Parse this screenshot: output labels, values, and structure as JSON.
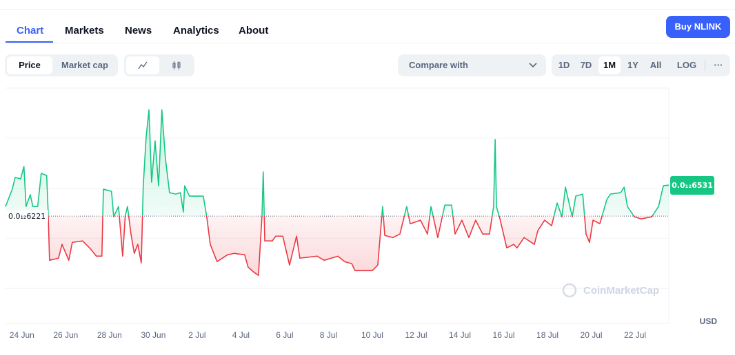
{
  "tabs": [
    "Chart",
    "Markets",
    "News",
    "Analytics",
    "About"
  ],
  "buy_button": "Buy NLINK",
  "toggle": [
    "Price",
    "Market cap"
  ],
  "compare": "Compare with",
  "ranges": [
    "1D",
    "7D",
    "1M",
    "1Y",
    "All",
    "LOG"
  ],
  "more": "···",
  "chart_data": {
    "type": "line",
    "up_color": "#16c784",
    "down_color": "#ea3943",
    "watermark": "CoinMarketCap",
    "currency": "USD",
    "baseline": {
      "value": 6.221e-13,
      "label": "0.0₁₂6221"
    },
    "current": {
      "value": 6.531e-13,
      "label": "0.0₁₂6531"
    },
    "grid": true,
    "xlim": [
      -0.75,
      29.54
    ],
    "ylim": [
      5.15e-13,
      7.5e-13
    ],
    "yticks": [
      5.5e-13,
      6e-13,
      6.5e-13,
      7e-13,
      7.5e-13
    ],
    "xticks": [
      {
        "value": 0,
        "label": "24 Jun"
      },
      {
        "value": 2,
        "label": "26 Jun"
      },
      {
        "value": 4,
        "label": "28 Jun"
      },
      {
        "value": 6,
        "label": "30 Jun"
      },
      {
        "value": 8,
        "label": "2 Jul"
      },
      {
        "value": 10,
        "label": "4 Jul"
      },
      {
        "value": 12,
        "label": "6 Jul"
      },
      {
        "value": 14,
        "label": "8 Jul"
      },
      {
        "value": 16,
        "label": "10 Jul"
      },
      {
        "value": 18,
        "label": "12 Jul"
      },
      {
        "value": 20,
        "label": "14 Jul"
      },
      {
        "value": 22,
        "label": "16 Jul"
      },
      {
        "value": 24,
        "label": "18 Jul"
      },
      {
        "value": 26,
        "label": "20 Jul"
      },
      {
        "value": 28,
        "label": "22 Jul"
      }
    ],
    "x": [
      -0.75,
      -0.44,
      -0.31,
      -0.06,
      0.09,
      0.19,
      0.38,
      0.5,
      0.72,
      0.88,
      1.13,
      1.2,
      1.26,
      1.67,
      1.83,
      2.14,
      2.3,
      2.77,
      3.09,
      3.4,
      3.65,
      3.72,
      4.09,
      4.19,
      4.41,
      4.6,
      4.72,
      4.82,
      4.98,
      5.13,
      5.29,
      5.45,
      5.54,
      5.67,
      5.8,
      5.92,
      6.08,
      6.24,
      6.39,
      6.55,
      6.74,
      7.02,
      7.24,
      7.37,
      7.43,
      7.65,
      8.28,
      8.44,
      8.6,
      8.91,
      9.39,
      9.7,
      10.17,
      10.33,
      10.58,
      10.8,
      10.96,
      11.02,
      11.09,
      11.43,
      11.59,
      11.91,
      12.22,
      12.54,
      12.69,
      13.48,
      13.8,
      14.43,
      14.74,
      15.06,
      15.21,
      16.0,
      16.25,
      16.47,
      16.57,
      16.94,
      17.26,
      17.57,
      17.73,
      18.2,
      18.52,
      18.68,
      18.99,
      19.31,
      19.62,
      19.78,
      20.09,
      20.41,
      20.72,
      21.04,
      21.35,
      21.54,
      21.61,
      21.67,
      21.83,
      22.14,
      22.46,
      22.61,
      22.93,
      23.4,
      23.56,
      23.87,
      24.19,
      24.44,
      24.66,
      24.82,
      25.13,
      25.29,
      25.61,
      25.76,
      25.92,
      26.08,
      26.39,
      26.71,
      26.87,
      27.34,
      27.5,
      27.65,
      27.97,
      28.28,
      28.76,
      29.07,
      29.29,
      29.54
    ],
    "values": [
      6.317e-13,
      6.49e-13,
      6.607e-13,
      6.593e-13,
      6.717e-13,
      6.317e-13,
      6.435e-13,
      6.317e-13,
      6.317e-13,
      6.648e-13,
      6.627e-13,
      6.249e-13,
      5.78e-13,
      5.801e-13,
      5.939e-13,
      5.78e-13,
      5.959e-13,
      5.973e-13,
      5.904e-13,
      5.821e-13,
      5.821e-13,
      6.49e-13,
      6.469e-13,
      6.214e-13,
      6.317e-13,
      5.821e-13,
      6.228e-13,
      6.317e-13,
      6.042e-13,
      5.849e-13,
      5.939e-13,
      5.753e-13,
      6.524e-13,
      7.006e-13,
      7.282e-13,
      6.559e-13,
      6.972e-13,
      6.524e-13,
      7.282e-13,
      6.8e-13,
      6.455e-13,
      6.441e-13,
      6.455e-13,
      6.262e-13,
      6.524e-13,
      6.421e-13,
      6.421e-13,
      6.214e-13,
      5.939e-13,
      5.766e-13,
      5.835e-13,
      5.849e-13,
      5.835e-13,
      5.711e-13,
      5.663e-13,
      5.629e-13,
      6.214e-13,
      6.662e-13,
      5.973e-13,
      5.973e-13,
      6.021e-13,
      6.021e-13,
      5.732e-13,
      6.021e-13,
      5.801e-13,
      5.821e-13,
      5.78e-13,
      5.821e-13,
      5.766e-13,
      5.746e-13,
      5.677e-13,
      5.677e-13,
      5.732e-13,
      6.317e-13,
      6.028e-13,
      6.007e-13,
      6.042e-13,
      6.317e-13,
      6.145e-13,
      6.18e-13,
      6.042e-13,
      6.317e-13,
      6.007e-13,
      6.331e-13,
      6.331e-13,
      6.042e-13,
      6.18e-13,
      6.007e-13,
      6.18e-13,
      6.042e-13,
      6.042e-13,
      6.317e-13,
      6.986e-13,
      6.317e-13,
      6.193e-13,
      5.904e-13,
      5.939e-13,
      5.904e-13,
      6.007e-13,
      5.939e-13,
      6.076e-13,
      6.18e-13,
      6.125e-13,
      6.352e-13,
      6.214e-13,
      6.51e-13,
      6.214e-13,
      6.421e-13,
      6.441e-13,
      6.042e-13,
      5.959e-13,
      6.18e-13,
      6.145e-13,
      6.386e-13,
      6.441e-13,
      6.455e-13,
      6.51e-13,
      6.317e-13,
      6.214e-13,
      6.193e-13,
      6.214e-13,
      6.317e-13,
      6.524e-13,
      6.531e-13
    ]
  }
}
